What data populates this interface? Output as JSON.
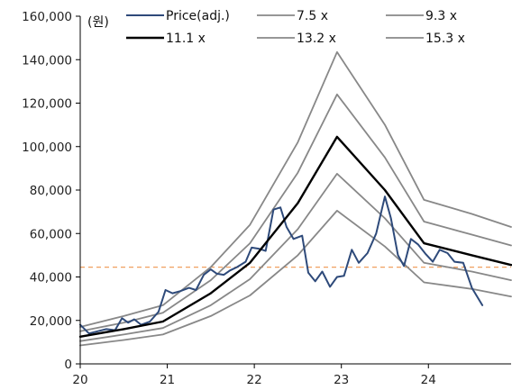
{
  "chart_data": {
    "type": "line",
    "unit_label": "(원)",
    "xlabel": "",
    "ylabel": "",
    "xlim": [
      2020.0,
      2024.95
    ],
    "ylim": [
      0,
      160000
    ],
    "x_ticks": [
      {
        "value": 2020,
        "label": "20"
      },
      {
        "value": 2021,
        "label": "21"
      },
      {
        "value": 2022,
        "label": "22"
      },
      {
        "value": 2023,
        "label": "23"
      },
      {
        "value": 2024,
        "label": "24"
      }
    ],
    "y_ticks": [
      {
        "value": 0,
        "label": "0"
      },
      {
        "value": 20000,
        "label": "20,000"
      },
      {
        "value": 40000,
        "label": "40,000"
      },
      {
        "value": 60000,
        "label": "60,000"
      },
      {
        "value": 80000,
        "label": "80,000"
      },
      {
        "value": 100000,
        "label": "100,000"
      },
      {
        "value": 120000,
        "label": "120,000"
      },
      {
        "value": 140000,
        "label": "140,000"
      },
      {
        "value": 160000,
        "label": "160,000"
      }
    ],
    "grid": false,
    "legend_position": "top",
    "reference_line": {
      "y": 44500,
      "color": "#f0a060",
      "style": "dashed"
    },
    "series": [
      {
        "name": "Price(adj.)",
        "color": "#2e4a7a",
        "width": 2,
        "points": [
          [
            2020.0,
            18000
          ],
          [
            2020.1,
            14000
          ],
          [
            2020.2,
            15000
          ],
          [
            2020.3,
            16000
          ],
          [
            2020.4,
            15500
          ],
          [
            2020.48,
            21000
          ],
          [
            2020.55,
            19000
          ],
          [
            2020.62,
            20500
          ],
          [
            2020.7,
            18000
          ],
          [
            2020.8,
            19500
          ],
          [
            2020.9,
            24000
          ],
          [
            2020.98,
            34000
          ],
          [
            2021.06,
            32500
          ],
          [
            2021.15,
            33500
          ],
          [
            2021.25,
            35000
          ],
          [
            2021.33,
            34000
          ],
          [
            2021.42,
            41000
          ],
          [
            2021.5,
            43500
          ],
          [
            2021.57,
            41500
          ],
          [
            2021.65,
            41000
          ],
          [
            2021.72,
            43000
          ],
          [
            2021.8,
            44500
          ],
          [
            2021.9,
            47000
          ],
          [
            2021.97,
            53500
          ],
          [
            2022.05,
            53000
          ],
          [
            2022.13,
            52000
          ],
          [
            2022.22,
            71000
          ],
          [
            2022.3,
            72000
          ],
          [
            2022.37,
            63000
          ],
          [
            2022.45,
            57500
          ],
          [
            2022.55,
            59000
          ],
          [
            2022.62,
            42000
          ],
          [
            2022.7,
            38000
          ],
          [
            2022.78,
            42500
          ],
          [
            2022.87,
            35500
          ],
          [
            2022.95,
            40000
          ],
          [
            2023.03,
            40500
          ],
          [
            2023.12,
            52500
          ],
          [
            2023.2,
            46500
          ],
          [
            2023.3,
            51000
          ],
          [
            2023.4,
            60000
          ],
          [
            2023.5,
            77000
          ],
          [
            2023.57,
            67000
          ],
          [
            2023.65,
            50000
          ],
          [
            2023.72,
            45000
          ],
          [
            2023.8,
            57500
          ],
          [
            2023.88,
            55000
          ],
          [
            2023.97,
            50500
          ],
          [
            2024.05,
            47000
          ],
          [
            2024.13,
            52500
          ],
          [
            2024.22,
            51000
          ],
          [
            2024.3,
            47000
          ],
          [
            2024.4,
            46500
          ],
          [
            2024.5,
            35000
          ],
          [
            2024.62,
            27000
          ]
        ]
      },
      {
        "name": "7.5 x",
        "color": "#888888",
        "width": 1.8,
        "points": [
          [
            2020.0,
            8500
          ],
          [
            2020.5,
            11000
          ],
          [
            2020.95,
            13500
          ],
          [
            2021.5,
            22000
          ],
          [
            2021.95,
            31500
          ],
          [
            2022.5,
            50000
          ],
          [
            2022.95,
            70500
          ],
          [
            2023.5,
            54000
          ],
          [
            2023.95,
            37500
          ],
          [
            2024.5,
            34500
          ],
          [
            2024.95,
            31000
          ]
        ]
      },
      {
        "name": "9.3 x",
        "color": "#888888",
        "width": 1.8,
        "points": [
          [
            2020.0,
            10500
          ],
          [
            2020.5,
            13500
          ],
          [
            2020.95,
            16500
          ],
          [
            2021.5,
            27000
          ],
          [
            2021.95,
            39000
          ],
          [
            2022.5,
            62000
          ],
          [
            2022.95,
            87500
          ],
          [
            2023.5,
            67000
          ],
          [
            2023.95,
            46500
          ],
          [
            2024.5,
            42500
          ],
          [
            2024.95,
            38500
          ]
        ]
      },
      {
        "name": "11.1 x",
        "color": "#000000",
        "width": 2.4,
        "points": [
          [
            2020.0,
            12500
          ],
          [
            2020.5,
            16000
          ],
          [
            2020.95,
            19500
          ],
          [
            2021.5,
            32500
          ],
          [
            2021.95,
            46500
          ],
          [
            2022.5,
            74000
          ],
          [
            2022.95,
            104500
          ],
          [
            2023.5,
            80000
          ],
          [
            2023.95,
            55500
          ],
          [
            2024.5,
            50000
          ],
          [
            2024.95,
            45500
          ]
        ]
      },
      {
        "name": "13.2 x",
        "color": "#888888",
        "width": 1.8,
        "points": [
          [
            2020.0,
            15000
          ],
          [
            2020.5,
            19000
          ],
          [
            2020.95,
            23500
          ],
          [
            2021.5,
            38500
          ],
          [
            2021.95,
            55500
          ],
          [
            2022.5,
            88000
          ],
          [
            2022.95,
            124000
          ],
          [
            2023.5,
            95000
          ],
          [
            2023.95,
            65500
          ],
          [
            2024.5,
            59500
          ],
          [
            2024.95,
            54500
          ]
        ]
      },
      {
        "name": "15.3 x",
        "color": "#888888",
        "width": 1.8,
        "points": [
          [
            2020.0,
            17000
          ],
          [
            2020.5,
            22000
          ],
          [
            2020.95,
            27000
          ],
          [
            2021.5,
            44500
          ],
          [
            2021.95,
            64000
          ],
          [
            2022.5,
            102000
          ],
          [
            2022.95,
            143500
          ],
          [
            2023.5,
            110000
          ],
          [
            2023.95,
            75500
          ],
          [
            2024.5,
            69000
          ],
          [
            2024.95,
            63000
          ]
        ]
      }
    ]
  }
}
